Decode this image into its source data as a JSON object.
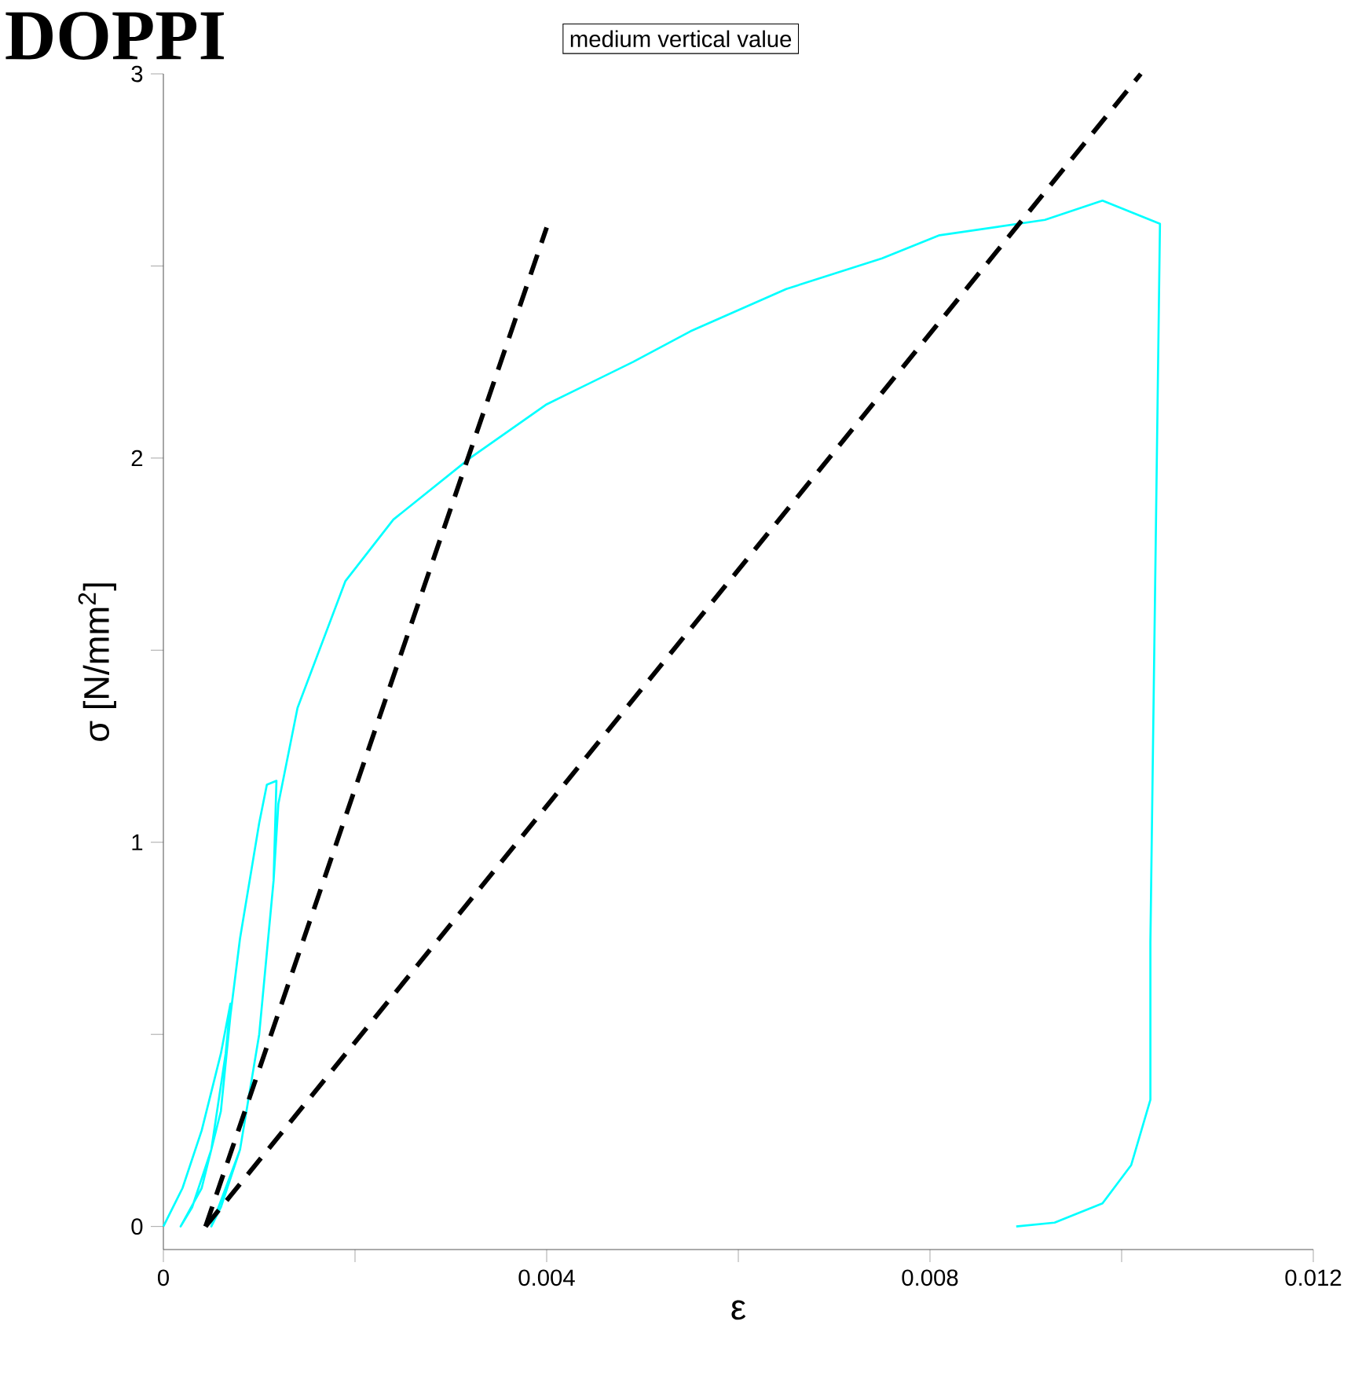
{
  "chart_data": {
    "type": "line",
    "title": "DOPPI",
    "xlabel": "ε",
    "ylabel": "σ [N/mm$^{2}$]",
    "annotations": [
      "medium vertical value"
    ],
    "xlim": [
      0,
      0.012
    ],
    "ylim": [
      -0.06,
      3
    ],
    "xticks": [
      0,
      {
        "value": 0.002,
        "label": null
      },
      0.004,
      {
        "value": 0.006,
        "label": null
      },
      0.008,
      {
        "value": 0.01,
        "label": null
      },
      0.012
    ],
    "yticks": [
      0,
      {
        "value": 0.5,
        "label": null
      },
      1,
      {
        "value": 1.5,
        "label": null
      },
      2,
      {
        "value": 2.5,
        "label": null
      },
      3
    ],
    "series": [
      {
        "color": "#00ffff",
        "line_style": "solid",
        "x": [
          0,
          0.0002,
          0.0004,
          0.0006,
          0.0007,
          0.00065,
          0.0005,
          0.0003,
          0.00018,
          0.0004,
          0.0006,
          0.0007,
          0.0008,
          0.0009,
          0.001,
          0.00108,
          0.00118,
          0.00115,
          0.001,
          0.0008,
          0.0006,
          0.0005,
          0.0008,
          0.001,
          0.00115,
          0.0012,
          0.0014,
          0.0019,
          0.0024,
          0.0032,
          0.004,
          0.0049,
          0.0055,
          0.0065,
          0.0075,
          0.0081,
          0.0092,
          0.0098,
          0.0101,
          0.0104,
          0.0103,
          0.0103,
          0.0101,
          0.0098,
          0.0093,
          0.0089
        ],
        "values": [
          0,
          0.1,
          0.25,
          0.45,
          0.58,
          0.45,
          0.2,
          0.05,
          0,
          0.1,
          0.3,
          0.55,
          0.75,
          0.9,
          1.05,
          1.15,
          1.16,
          0.9,
          0.5,
          0.2,
          0.05,
          0,
          0.2,
          0.5,
          0.9,
          1.1,
          1.35,
          1.68,
          1.84,
          2.0,
          2.14,
          2.25,
          2.33,
          2.44,
          2.52,
          2.58,
          2.62,
          2.67,
          2.64,
          2.61,
          0.74,
          0.33,
          0.16,
          0.06,
          0.01,
          0
        ]
      },
      {
        "color": "#000000",
        "line_style": "dashed",
        "x": [
          0.00044,
          0.004
        ],
        "values": [
          0,
          2.6
        ]
      },
      {
        "color": "#000000",
        "line_style": "dashed",
        "x": [
          0.00044,
          0.0102
        ],
        "values": [
          0,
          3
        ]
      }
    ]
  }
}
